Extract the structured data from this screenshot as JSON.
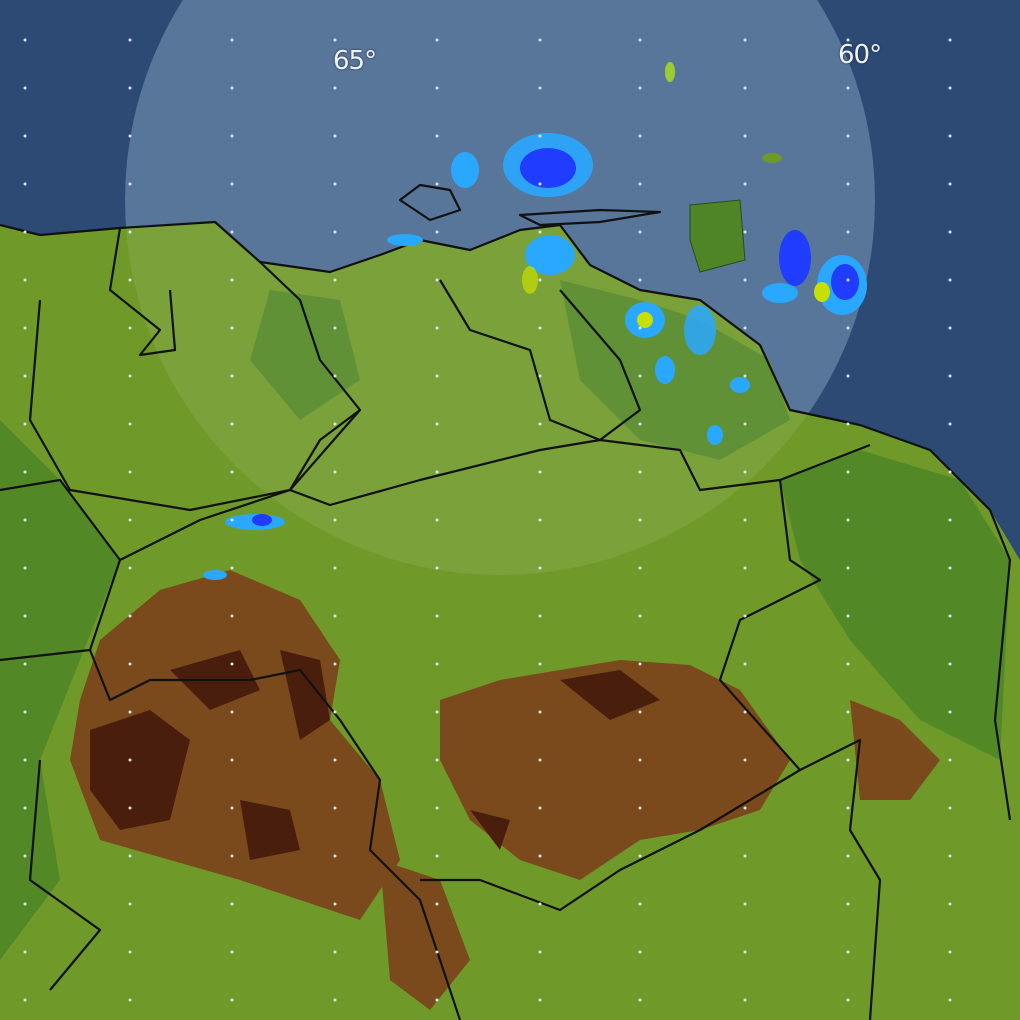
{
  "map": {
    "type": "weather-radar",
    "longitude_labels": [
      {
        "text": "65°",
        "lon": -65
      },
      {
        "text": "60°",
        "lon": -60
      }
    ],
    "colors": {
      "ocean": "#2c4a73",
      "radar_coverage": "#4a6a92",
      "lowland": "#6f9a2a",
      "forest": "#3f7a22",
      "highland": "#7a4a1c",
      "peak": "#4a1e0c",
      "border": "#111111",
      "echo_light": "#2aa8ff",
      "echo_medium": "#1f3cff",
      "echo_heavy": "#c8e000"
    }
  }
}
